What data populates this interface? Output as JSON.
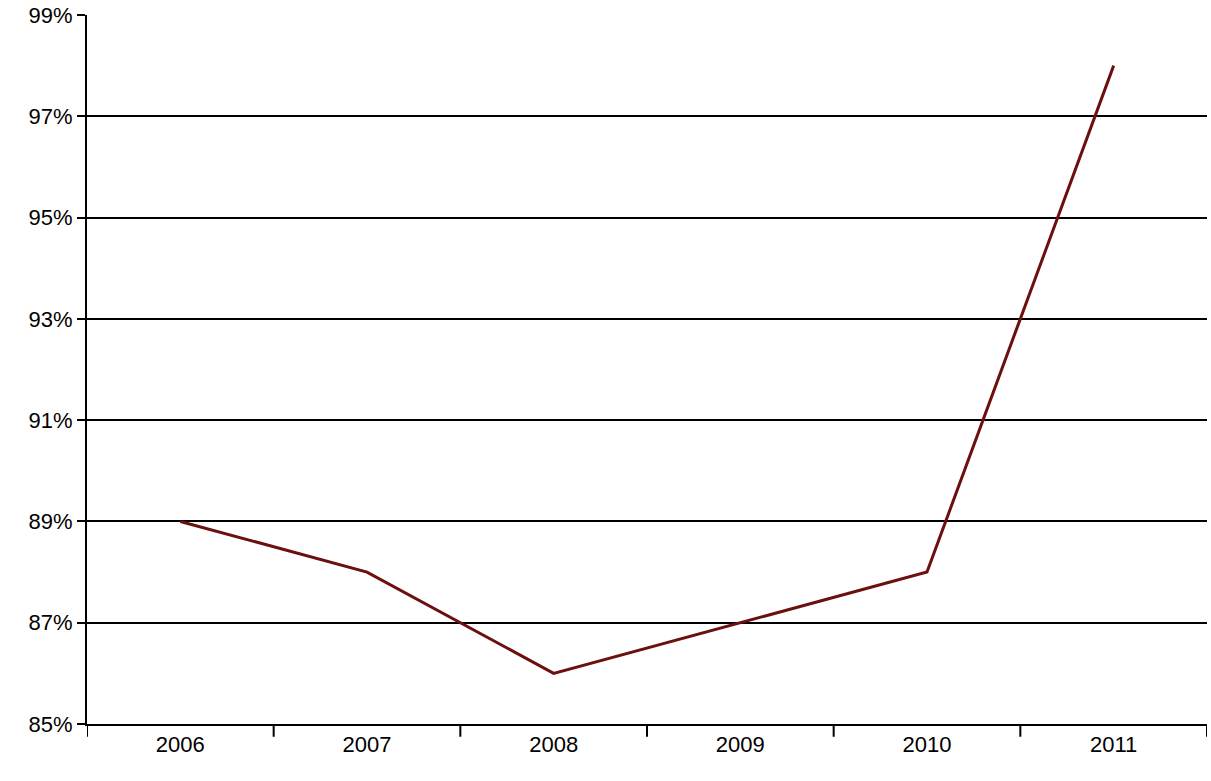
{
  "chart_data": {
    "type": "line",
    "categories": [
      "2006",
      "2007",
      "2008",
      "2009",
      "2010",
      "2011"
    ],
    "values": [
      89,
      88,
      86,
      87,
      88,
      98
    ],
    "color": "#6b0f0f",
    "ylim": [
      85,
      99
    ],
    "yticks": [
      {
        "value": 85,
        "label": "85%"
      },
      {
        "value": 87,
        "label": "87%"
      },
      {
        "value": 89,
        "label": "89%"
      },
      {
        "value": 91,
        "label": "91%"
      },
      {
        "value": 93,
        "label": "93%"
      },
      {
        "value": 95,
        "label": "95%"
      },
      {
        "value": 97,
        "label": "97%"
      },
      {
        "value": 99,
        "label": "99%"
      }
    ],
    "grid": true
  }
}
